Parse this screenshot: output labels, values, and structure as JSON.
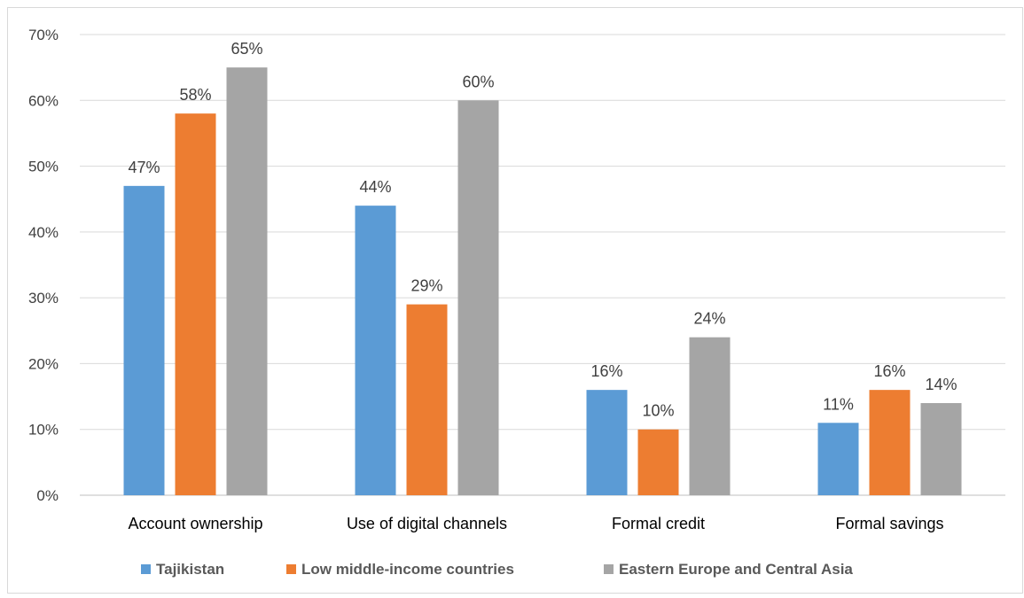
{
  "chart_data": {
    "type": "bar",
    "categories": [
      "Account ownership",
      "Use of digital channels",
      "Formal credit",
      "Formal savings"
    ],
    "series": [
      {
        "name": "Tajikistan",
        "values": [
          47,
          44,
          16,
          11
        ],
        "color": "#5b9bd5"
      },
      {
        "name": "Low middle-income countries",
        "values": [
          58,
          29,
          10,
          16
        ],
        "color": "#ed7d31"
      },
      {
        "name": "Eastern Europe and Central Asia",
        "values": [
          65,
          60,
          24,
          14
        ],
        "color": "#a5a5a5"
      }
    ],
    "ylim": [
      0,
      70
    ],
    "yticks": [
      0,
      10,
      20,
      30,
      40,
      50,
      60,
      70
    ],
    "value_suffix": "%",
    "grid": true,
    "legend_position": "bottom",
    "title": "",
    "xlabel": "",
    "ylabel": ""
  }
}
